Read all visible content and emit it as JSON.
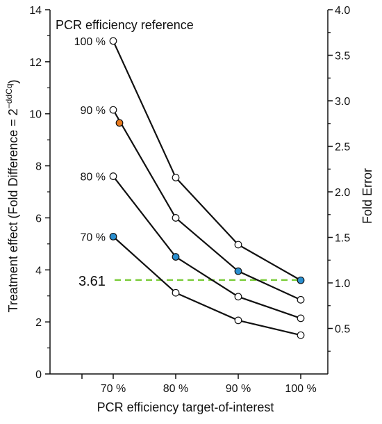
{
  "chart_data": {
    "type": "line",
    "title": "",
    "legend_title": "PCR efficiency reference",
    "xlabel": "PCR efficiency target-of-interest",
    "ylabel_parts": {
      "main": "Treatment effect (Fold Difference = 2",
      "sup": "−ddCq",
      "close": ")"
    },
    "y2label": "Fold Error",
    "categories": [
      "70 %",
      "80 %",
      "90 %",
      "100 %"
    ],
    "ylim": [
      0,
      14
    ],
    "yticks": [
      0,
      2,
      4,
      6,
      8,
      10,
      12,
      14
    ],
    "y2lim": [
      0,
      4.0
    ],
    "y2ticks": [
      "0.5",
      "1.0",
      "1.5",
      "2.0",
      "2.5",
      "3.0",
      "3.5",
      "4.0"
    ],
    "series": [
      {
        "name": "100 %",
        "values": [
          12.8,
          7.55,
          4.97,
          3.6
        ],
        "fills": [
          "#ffffff",
          "#ffffff",
          "#ffffff",
          "#2a8fd0"
        ]
      },
      {
        "name": "90 %",
        "values": [
          10.15,
          6.0,
          3.95,
          2.85
        ],
        "fills": [
          "#ffffff",
          "#ffffff",
          "#2a8fd0",
          "#ffffff"
        ]
      },
      {
        "name": "80 %",
        "values": [
          7.6,
          4.5,
          2.97,
          2.14
        ],
        "fills": [
          "#ffffff",
          "#2a8fd0",
          "#ffffff",
          "#ffffff"
        ]
      },
      {
        "name": "70 %",
        "values": [
          5.28,
          3.12,
          2.06,
          1.49
        ],
        "fills": [
          "#2a8fd0",
          "#ffffff",
          "#ffffff",
          "#ffffff"
        ]
      }
    ],
    "extra_point": {
      "x": 0.1,
      "y": 9.65,
      "color": "#e87a1e"
    },
    "threshold": {
      "value": 3.61,
      "label": "3.61",
      "color": "#7ccd3c"
    },
    "colors": {
      "line": "#111111",
      "highlight": "#2a8fd0",
      "orange": "#e87a1e"
    }
  }
}
